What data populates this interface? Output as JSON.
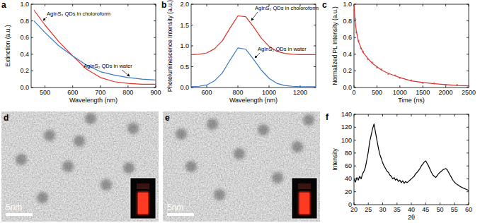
{
  "chart_data": [
    {
      "type": "line",
      "title": "a",
      "x_label": "Wavelength (nm)",
      "y_label": "Extinction (a.u.)",
      "x": [
        460,
        500,
        550,
        600,
        650,
        700,
        750,
        800,
        850,
        900
      ],
      "series": [
        {
          "name": "AgInS₂ QDs in choloroform",
          "color": "#e0302a",
          "values": [
            0.93,
            0.75,
            0.55,
            0.38,
            0.22,
            0.12,
            0.07,
            0.05,
            0.04,
            0.04
          ]
        },
        {
          "name": "AgInS₂ QDs in water",
          "color": "#3b7bbf",
          "values": [
            0.8,
            0.66,
            0.5,
            0.38,
            0.27,
            0.19,
            0.15,
            0.12,
            0.1,
            0.09
          ]
        }
      ],
      "xlim": [
        450,
        900
      ],
      "xticks": [
        500,
        600,
        700,
        800,
        900
      ],
      "ylim": [
        0,
        1.0
      ],
      "yticks": [
        {
          "value": 0,
          "label": "0.0"
        },
        {
          "value": 0.2,
          "label": "0.2"
        },
        {
          "value": 0.4,
          "label": "0.4"
        },
        {
          "value": 0.6,
          "label": "0.6"
        },
        {
          "value": 0.8,
          "label": "0.8"
        },
        {
          "value": 1.0,
          "label": "1.0"
        }
      ],
      "grid": false
    },
    {
      "type": "line",
      "title": "b",
      "x_label": "Wavelength (nm)",
      "y_label": "Photoluminescence Intensity (a.u.)",
      "x": [
        500,
        550,
        600,
        650,
        700,
        750,
        800,
        850,
        900,
        950,
        1000,
        1050,
        1100,
        1150,
        1200,
        1250,
        1300
      ],
      "series": [
        {
          "name": "AgInS₂ QDs in choloroform",
          "color": "#e0302a",
          "values": [
            0.79,
            0.8,
            0.83,
            0.93,
            1.12,
            1.43,
            1.72,
            1.7,
            1.46,
            1.19,
            0.99,
            0.87,
            0.82,
            0.8,
            0.79,
            0.79,
            0.79
          ]
        },
        {
          "name": "AgInS₂ QDs in water",
          "color": "#3b7bbf",
          "values": [
            0.02,
            0.03,
            0.06,
            0.16,
            0.35,
            0.66,
            0.95,
            0.92,
            0.68,
            0.42,
            0.22,
            0.1,
            0.05,
            0.03,
            0.02,
            0.02,
            0.02
          ]
        }
      ],
      "xlim": [
        500,
        1300
      ],
      "xticks": [
        600,
        800,
        1000,
        1200
      ],
      "ylim": [
        0,
        2.0
      ],
      "yticks": [
        {
          "value": 0,
          "label": "0.0"
        },
        {
          "value": 0.5,
          "label": "0.5"
        },
        {
          "value": 1.0,
          "label": "1.0"
        },
        {
          "value": 1.5,
          "label": "1.5"
        },
        {
          "value": 2.0,
          "label": "2.0"
        }
      ],
      "grid": false
    },
    {
      "type": "line",
      "title": "c",
      "x_label": "Time (ns)",
      "y_label": "Normalized PL Intensity (a.u.)",
      "x": [
        0,
        25,
        50,
        100,
        150,
        200,
        300,
        400,
        500,
        600,
        750,
        900,
        1000,
        1250,
        1500,
        1750,
        2000,
        2250,
        2500
      ],
      "series": [
        {
          "type": "scatter",
          "marker": "circle",
          "color": "#9a8a8a",
          "values": [
            0.98,
            0.82,
            0.66,
            0.56,
            0.47,
            0.43,
            0.34,
            0.3,
            0.24,
            0.22,
            0.16,
            0.145,
            0.115,
            0.085,
            0.055,
            0.05,
            0.03,
            0.03,
            0.015
          ]
        },
        {
          "type": "line",
          "color": "#e0302a",
          "values": [
            1.0,
            0.8,
            0.68,
            0.55,
            0.48,
            0.42,
            0.35,
            0.29,
            0.25,
            0.21,
            0.17,
            0.14,
            0.12,
            0.08,
            0.06,
            0.045,
            0.035,
            0.025,
            0.02
          ]
        }
      ],
      "xlim": [
        0,
        2500
      ],
      "xticks": [
        0,
        500,
        1000,
        1500,
        2000,
        2500
      ],
      "ylim": [
        0,
        1.0
      ],
      "yticks": [
        {
          "value": 0,
          "label": "0.0"
        },
        {
          "value": 0.2,
          "label": "0.2"
        },
        {
          "value": 0.4,
          "label": "0.4"
        },
        {
          "value": 0.6,
          "label": "0.6"
        },
        {
          "value": 0.8,
          "label": "0.8"
        },
        {
          "value": 1.0,
          "label": "1.0"
        }
      ],
      "grid": false
    },
    {
      "type": "image",
      "title": "d",
      "annotations": [
        "5nm"
      ]
    },
    {
      "type": "image",
      "title": "e",
      "annotations": [
        "5nm"
      ]
    },
    {
      "type": "line",
      "title": "f",
      "x_label": "2θ",
      "y_label": "Intensity",
      "x": [
        20,
        20.5,
        21,
        21.5,
        22,
        22.5,
        23,
        23.5,
        24,
        24.5,
        25,
        25.5,
        26,
        26.5,
        27,
        27.5,
        28,
        28.5,
        29,
        29.5,
        30,
        30.5,
        31,
        31.5,
        32,
        32.5,
        33,
        33.5,
        34,
        34.5,
        35,
        35.5,
        36,
        36.5,
        37,
        37.5,
        38,
        38.5,
        39,
        39.5,
        40,
        40.5,
        41,
        41.5,
        42,
        42.5,
        43,
        43.5,
        44,
        44.5,
        45,
        45.5,
        46,
        46.5,
        47,
        47.5,
        48,
        48.5,
        49,
        49.5,
        50,
        50.5,
        51,
        51.5,
        52,
        52.5,
        53,
        53.5,
        54,
        54.5,
        55,
        55.5,
        56,
        56.5,
        57,
        57.5,
        58,
        58.5,
        59,
        59.5,
        60
      ],
      "series": [
        {
          "color": "#000000",
          "values": [
            40,
            35,
            42,
            38,
            44,
            40,
            48,
            52,
            58,
            70,
            82,
            98,
            108,
            118,
            125,
            112,
            100,
            88,
            78,
            72,
            65,
            60,
            56,
            52,
            50,
            46,
            44,
            40,
            42,
            38,
            40,
            36,
            38,
            34,
            37,
            33,
            36,
            34,
            36,
            38,
            40,
            42,
            44,
            48,
            50,
            53,
            56,
            60,
            63,
            66,
            68,
            64,
            60,
            55,
            50,
            46,
            44,
            42,
            45,
            48,
            50,
            52,
            54,
            55,
            56,
            54,
            50,
            46,
            42,
            38,
            35,
            33,
            31,
            30,
            28,
            27,
            26,
            25,
            24,
            23,
            22
          ]
        }
      ],
      "xlim": [
        20,
        60
      ],
      "xticks": [
        20,
        25,
        30,
        35,
        40,
        45,
        50,
        55,
        60
      ],
      "ylim": [
        0,
        140
      ],
      "yticks": [
        0,
        20,
        40,
        60,
        80,
        100,
        120,
        140
      ],
      "grid": false
    }
  ]
}
